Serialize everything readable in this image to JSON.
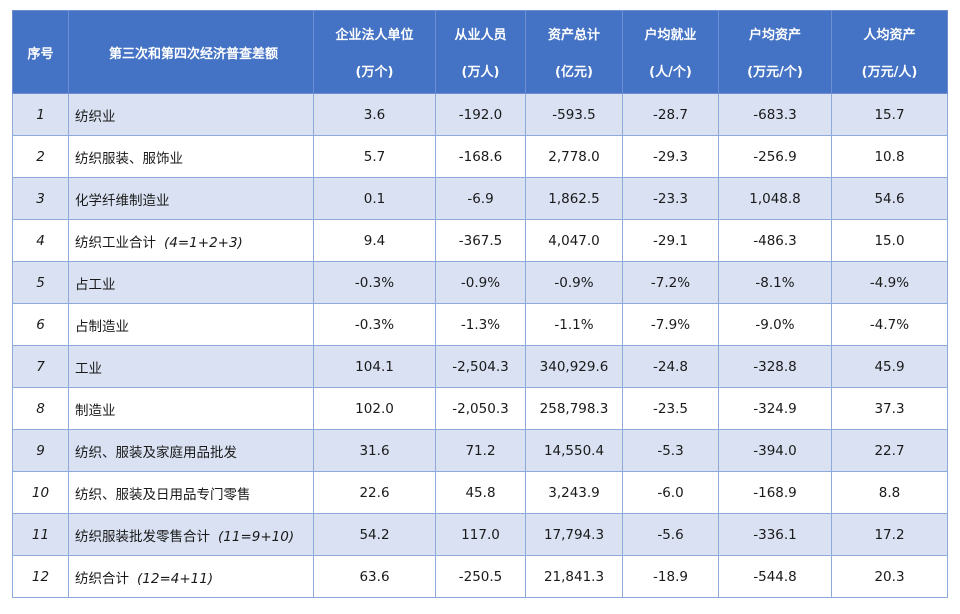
{
  "header": {
    "index_label": "序号",
    "title": "第三次和第四次经济普查差额",
    "columns": [
      {
        "label": "企业法人单位",
        "unit": "(万个)"
      },
      {
        "label": "从业人员",
        "unit": "(万人)"
      },
      {
        "label": "资产总计",
        "unit": "(亿元)"
      },
      {
        "label": "户均就业",
        "unit": "(人/个)"
      },
      {
        "label": "户均资产",
        "unit": "(万元/个)"
      },
      {
        "label": "人均资产",
        "unit": "(万元/人)"
      }
    ]
  },
  "rows": [
    {
      "index": "1",
      "name": "纺织业",
      "formula": "",
      "values": [
        "3.6",
        "-192.0",
        "-593.5",
        "-28.7",
        "-683.3",
        "15.7"
      ]
    },
    {
      "index": "2",
      "name": "纺织服装、服饰业",
      "formula": "",
      "values": [
        "5.7",
        "-168.6",
        "2,778.0",
        "-29.3",
        "-256.9",
        "10.8"
      ]
    },
    {
      "index": "3",
      "name": "化学纤维制造业",
      "formula": "",
      "values": [
        "0.1",
        "-6.9",
        "1,862.5",
        "-23.3",
        "1,048.8",
        "54.6"
      ]
    },
    {
      "index": "4",
      "name": "纺织工业合计",
      "formula": "(4=1+2+3)",
      "values": [
        "9.4",
        "-367.5",
        "4,047.0",
        "-29.1",
        "-486.3",
        "15.0"
      ]
    },
    {
      "index": "5",
      "name": "占工业",
      "formula": "",
      "values": [
        "-0.3%",
        "-0.9%",
        "-0.9%",
        "-7.2%",
        "-8.1%",
        "-4.9%"
      ]
    },
    {
      "index": "6",
      "name": "占制造业",
      "formula": "",
      "values": [
        "-0.3%",
        "-1.3%",
        "-1.1%",
        "-7.9%",
        "-9.0%",
        "-4.7%"
      ]
    },
    {
      "index": "7",
      "name": "工业",
      "formula": "",
      "values": [
        "104.1",
        "-2,504.3",
        "340,929.6",
        "-24.8",
        "-328.8",
        "45.9"
      ]
    },
    {
      "index": "8",
      "name": "制造业",
      "formula": "",
      "values": [
        "102.0",
        "-2,050.3",
        "258,798.3",
        "-23.5",
        "-324.9",
        "37.3"
      ]
    },
    {
      "index": "9",
      "name": "纺织、服装及家庭用品批发",
      "formula": "",
      "values": [
        "31.6",
        "71.2",
        "14,550.4",
        "-5.3",
        "-394.0",
        "22.7"
      ]
    },
    {
      "index": "10",
      "name": "纺织、服装及日用品专门零售",
      "formula": "",
      "values": [
        "22.6",
        "45.8",
        "3,243.9",
        "-6.0",
        "-168.9",
        "8.8"
      ]
    },
    {
      "index": "11",
      "name": "纺织服装批发零售合计",
      "formula": "(11=9+10)",
      "values": [
        "54.2",
        "117.0",
        "17,794.3",
        "-5.6",
        "-336.1",
        "17.2"
      ]
    },
    {
      "index": "12",
      "name": "纺织合计",
      "formula": "(12=4+11)",
      "values": [
        "63.6",
        "-250.5",
        "21,841.3",
        "-18.9",
        "-544.8",
        "20.3"
      ]
    }
  ]
}
